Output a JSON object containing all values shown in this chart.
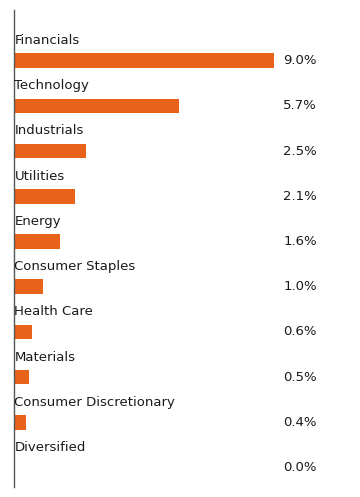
{
  "categories": [
    "Financials",
    "Technology",
    "Industrials",
    "Utilities",
    "Energy",
    "Consumer Staples",
    "Health Care",
    "Materials",
    "Consumer Discretionary",
    "Diversified"
  ],
  "values": [
    9.0,
    5.7,
    2.5,
    2.1,
    1.6,
    1.0,
    0.6,
    0.5,
    0.4,
    0.0
  ],
  "labels": [
    "9.0%",
    "5.7%",
    "2.5%",
    "2.1%",
    "1.6%",
    "1.0%",
    "0.6%",
    "0.5%",
    "0.4%",
    "0.0%"
  ],
  "bar_color": "#E8621A",
  "background_color": "#FFFFFF",
  "text_color": "#1A1A1A",
  "bar_height": 0.32,
  "xlim_max": 10.5,
  "label_fontsize": 9.5,
  "value_fontsize": 9.5,
  "spine_color": "#555555"
}
